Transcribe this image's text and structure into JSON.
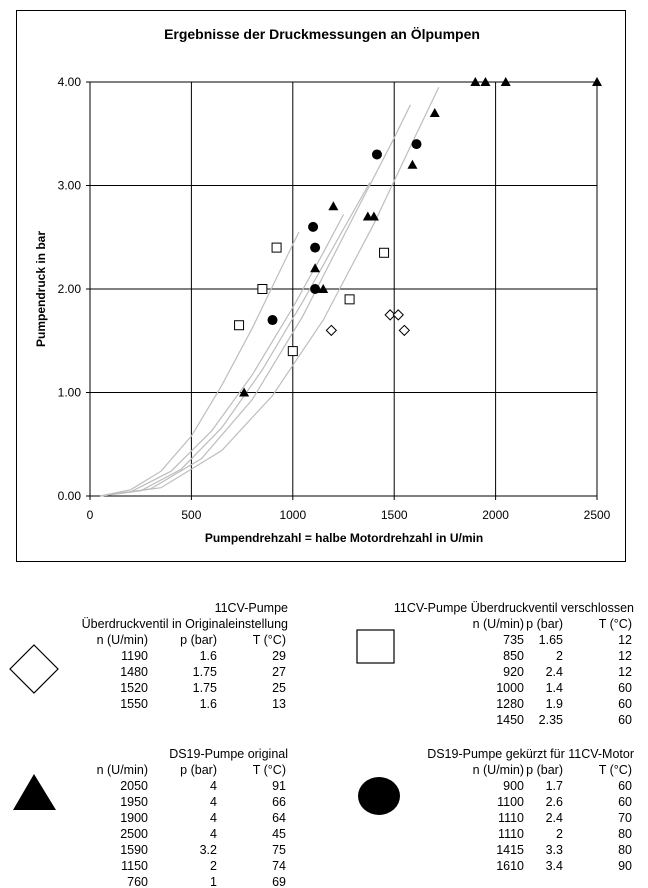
{
  "chart_data": {
    "type": "scatter",
    "title": "Ergebnisse der Druckmessungen an Ölpumpen",
    "xlabel": "Pumpendrehzahl = halbe Motordrehzahl in U/min",
    "ylabel": "Pumpendruck in bar",
    "xlim": [
      0,
      2500
    ],
    "ylim": [
      0,
      4
    ],
    "xticks": [
      "0",
      "500",
      "1000",
      "1500",
      "2000",
      "2500"
    ],
    "yticks": [
      "0.00",
      "1.00",
      "2.00",
      "3.00",
      "4.00"
    ],
    "grid": true,
    "series": [
      {
        "marker": "triangle",
        "x": [
          2050,
          1950,
          1900,
          2500,
          1590,
          1150,
          760,
          1700,
          1400,
          1200,
          1370,
          1110
        ],
        "y": [
          4,
          4,
          4,
          4,
          3.2,
          2,
          1,
          3.7,
          2.7,
          2.8,
          2.7,
          2.2
        ]
      },
      {
        "marker": "circle",
        "x": [
          900,
          1100,
          1110,
          1110,
          1415,
          1610
        ],
        "y": [
          1.7,
          2.6,
          2.4,
          2,
          3.3,
          3.4
        ]
      },
      {
        "marker": "square",
        "x": [
          735,
          850,
          920,
          1000,
          1280,
          1450
        ],
        "y": [
          1.65,
          2,
          2.4,
          1.4,
          1.9,
          2.35
        ]
      },
      {
        "marker": "diamond",
        "x": [
          1190,
          1480,
          1520,
          1550
        ],
        "y": [
          1.6,
          1.75,
          1.75,
          1.6
        ]
      }
    ],
    "curves": [
      {
        "x": [
          50,
          200,
          350,
          500,
          650,
          800,
          950,
          1030
        ],
        "y": [
          0,
          0.06,
          0.24,
          0.58,
          1.07,
          1.62,
          2.23,
          2.55
        ]
      },
      {
        "x": [
          50,
          200,
          400,
          600,
          800,
          1000,
          1150,
          1250
        ],
        "y": [
          0,
          0.04,
          0.24,
          0.63,
          1.17,
          1.82,
          2.35,
          2.72
        ]
      },
      {
        "x": [
          50,
          250,
          450,
          650,
          850,
          1050,
          1250,
          1380
        ],
        "y": [
          0,
          0.05,
          0.26,
          0.66,
          1.22,
          1.88,
          2.58,
          3.03
        ]
      },
      {
        "x": [
          50,
          300,
          550,
          800,
          1050,
          1300,
          1500,
          1580
        ],
        "y": [
          0,
          0.07,
          0.36,
          0.93,
          1.74,
          2.7,
          3.46,
          3.78
        ]
      },
      {
        "x": [
          50,
          350,
          650,
          900,
          1150,
          1400,
          1600,
          1720
        ],
        "y": [
          0,
          0.08,
          0.44,
          0.97,
          1.7,
          2.63,
          3.46,
          3.95
        ]
      }
    ]
  },
  "legend_tables": [
    {
      "id": "diamond",
      "title_lines": [
        "11CV-Pumpe",
        "Überdruckventil in Originaleinstellung"
      ],
      "headers": [
        "n (U/min)",
        "p (bar)",
        "T (°C)"
      ],
      "rows": [
        [
          "1190",
          "1.6",
          "29"
        ],
        [
          "1480",
          "1.75",
          "27"
        ],
        [
          "1520",
          "1.75",
          "25"
        ],
        [
          "1550",
          "1.6",
          "13"
        ]
      ]
    },
    {
      "id": "square",
      "title_lines": [
        "11CV-Pumpe  Überdruckventil verschlossen"
      ],
      "headers": [
        "n (U/min)",
        "p (bar)",
        "T (°C)"
      ],
      "rows": [
        [
          "735",
          "1.65",
          "12"
        ],
        [
          "850",
          "2",
          "12"
        ],
        [
          "920",
          "2.4",
          "12"
        ],
        [
          "1000",
          "1.4",
          "60"
        ],
        [
          "1280",
          "1.9",
          "60"
        ],
        [
          "1450",
          "2.35",
          "60"
        ]
      ]
    },
    {
      "id": "triangle",
      "title_lines": [
        "DS19-Pumpe original"
      ],
      "headers": [
        "n (U/min)",
        "p (bar)",
        "T (°C)"
      ],
      "rows": [
        [
          "2050",
          "4",
          "91"
        ],
        [
          "1950",
          "4",
          "66"
        ],
        [
          "1900",
          "4",
          "64"
        ],
        [
          "2500",
          "4",
          "45"
        ],
        [
          "1590",
          "3.2",
          "75"
        ],
        [
          "1150",
          "2",
          "74"
        ],
        [
          "760",
          "1",
          "69"
        ]
      ]
    },
    {
      "id": "circle",
      "title_lines": [
        "DS19-Pumpe gekürzt für 11CV-Motor"
      ],
      "headers": [
        "n (U/min)",
        "p (bar)",
        "T (°C)"
      ],
      "rows": [
        [
          "900",
          "1.7",
          "60"
        ],
        [
          "1100",
          "2.6",
          "60"
        ],
        [
          "1110",
          "2.4",
          "70"
        ],
        [
          "1110",
          "2",
          "80"
        ],
        [
          "1415",
          "3.3",
          "80"
        ],
        [
          "1610",
          "3.4",
          "90"
        ]
      ]
    }
  ]
}
